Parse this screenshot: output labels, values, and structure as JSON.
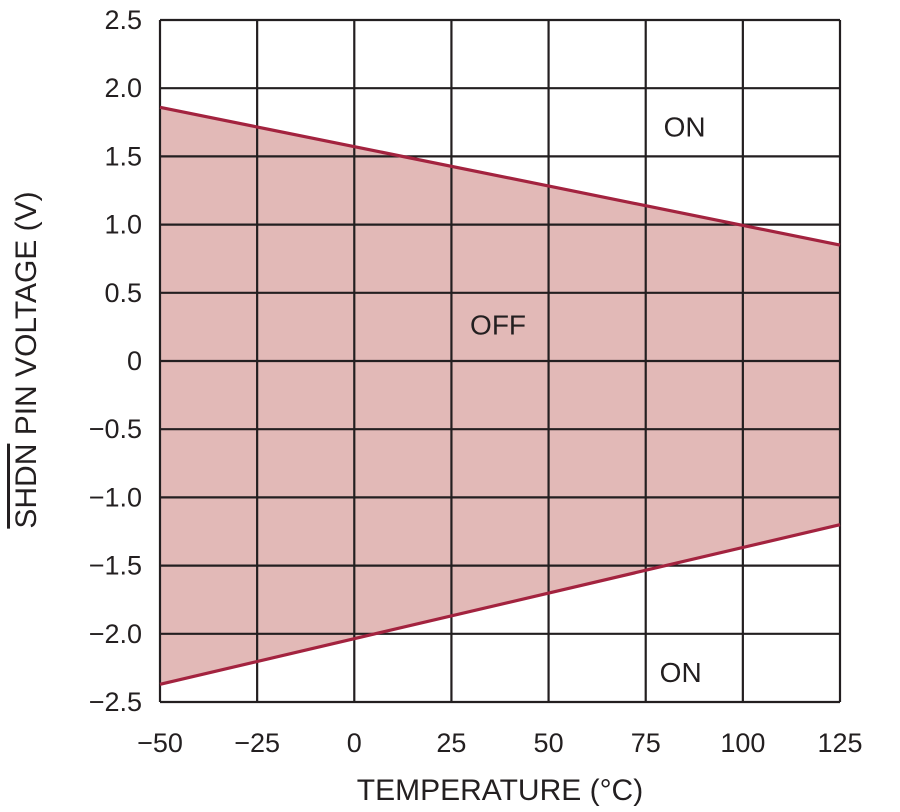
{
  "chart_data": {
    "type": "area",
    "xlabel": "TEMPERATURE (°C)",
    "ylabel_overline": "SHDN",
    "ylabel_rest": " PIN VOLTAGE (V)",
    "xlim": [
      -50,
      125
    ],
    "ylim": [
      -2.5,
      2.5
    ],
    "x_ticks": [
      -50,
      -25,
      0,
      25,
      50,
      75,
      100,
      125
    ],
    "y_ticks": [
      2.5,
      2.0,
      1.5,
      1.0,
      0.5,
      0,
      -0.5,
      -1.0,
      -1.5,
      -2.0,
      -2.5
    ],
    "x_tick_labels": [
      "−50",
      "−25",
      "0",
      "25",
      "50",
      "75",
      "100",
      "125"
    ],
    "y_tick_labels": [
      "2.5",
      "2.0",
      "1.5",
      "1.0",
      "0.5",
      "0",
      "−0.5",
      "−1.0",
      "−1.5",
      "−2.0",
      "−2.5"
    ],
    "grid": true,
    "series": [
      {
        "x": [
          -50,
          125
        ],
        "y": [
          1.86,
          0.85
        ]
      },
      {
        "x": [
          -50,
          125
        ],
        "y": [
          -2.37,
          -1.2
        ]
      }
    ],
    "region_labels": [
      {
        "text": "ON",
        "x": 85,
        "y": 1.7
      },
      {
        "text": "OFF",
        "x": 37,
        "y": 0.25
      },
      {
        "text": "ON",
        "x": 84,
        "y": -2.3
      }
    ],
    "colors": {
      "line": "#a3233f",
      "fill": "#e2b9b7",
      "grid": "#231f20"
    }
  }
}
